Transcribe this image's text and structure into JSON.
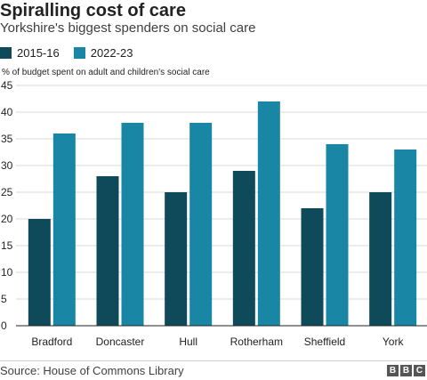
{
  "header": {
    "title": "Spiralling cost of care",
    "subtitle": "Yorkshire's biggest spenders on social care"
  },
  "footer": {
    "source": "Source: House of Commons Library",
    "logo_letters": [
      "B",
      "B",
      "C"
    ]
  },
  "colors": {
    "series_2015": "#0f4a5b",
    "series_2022": "#1a86a6",
    "grid": "#d9d9d9",
    "axis": "#222222"
  },
  "chart_data": {
    "type": "bar",
    "ylabel": "% of budget spent on adult and children's social care",
    "categories": [
      "Bradford",
      "Doncaster",
      "Hull",
      "Rotherham",
      "Sheffield",
      "York"
    ],
    "series": [
      {
        "name": "2015-16",
        "values": [
          20,
          28,
          25,
          29,
          22,
          25
        ]
      },
      {
        "name": "2022-23",
        "values": [
          36,
          38,
          38,
          42,
          34,
          33
        ]
      }
    ],
    "ylim": [
      0,
      45
    ],
    "yticks": [
      0,
      5,
      10,
      15,
      20,
      25,
      30,
      35,
      40,
      45
    ],
    "grid": true,
    "legend_position": "top-left"
  }
}
